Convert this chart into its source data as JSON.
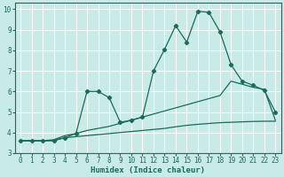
{
  "xlabel": "Humidex (Indice chaleur)",
  "bg_color": "#c8ebe8",
  "grid_color": "#ffffff",
  "line_color": "#1a6b5a",
  "xlim": [
    -0.5,
    23.5
  ],
  "ylim": [
    3,
    10.3
  ],
  "xticks": [
    0,
    1,
    2,
    3,
    4,
    5,
    6,
    7,
    8,
    9,
    10,
    11,
    12,
    13,
    14,
    15,
    16,
    17,
    18,
    19,
    20,
    21,
    22,
    23
  ],
  "yticks": [
    3,
    4,
    5,
    6,
    7,
    8,
    9,
    10
  ],
  "line1_x": [
    0,
    1,
    2,
    3,
    4,
    5,
    6,
    7,
    8,
    9,
    10,
    11,
    12,
    13,
    14,
    15,
    16,
    17,
    18,
    19,
    20,
    21,
    22,
    23
  ],
  "line1_y": [
    3.6,
    3.6,
    3.6,
    3.62,
    3.75,
    3.8,
    3.85,
    3.9,
    3.95,
    4.0,
    4.05,
    4.1,
    4.15,
    4.2,
    4.28,
    4.35,
    4.4,
    4.44,
    4.48,
    4.5,
    4.52,
    4.54,
    4.55,
    4.55
  ],
  "line2_x": [
    0,
    1,
    2,
    3,
    4,
    5,
    6,
    7,
    8,
    9,
    10,
    11,
    12,
    13,
    14,
    15,
    16,
    17,
    18,
    19,
    20,
    21,
    22,
    23
  ],
  "line2_y": [
    3.6,
    3.6,
    3.6,
    3.65,
    3.85,
    3.95,
    4.1,
    4.2,
    4.3,
    4.45,
    4.6,
    4.75,
    4.9,
    5.05,
    5.2,
    5.35,
    5.5,
    5.65,
    5.8,
    6.5,
    6.35,
    6.2,
    6.1,
    4.6
  ],
  "line3_x": [
    0,
    1,
    2,
    3,
    4,
    5,
    6,
    7,
    8,
    9,
    10,
    11,
    12,
    13,
    14,
    15,
    16,
    17,
    18,
    19,
    20,
    21,
    22,
    23
  ],
  "line3_y": [
    3.6,
    3.6,
    3.6,
    3.6,
    3.75,
    3.95,
    6.0,
    6.0,
    5.7,
    4.5,
    4.6,
    4.75,
    7.0,
    8.05,
    9.2,
    8.4,
    9.9,
    9.85,
    8.9,
    7.3,
    6.5,
    6.3,
    6.05,
    5.0
  ]
}
